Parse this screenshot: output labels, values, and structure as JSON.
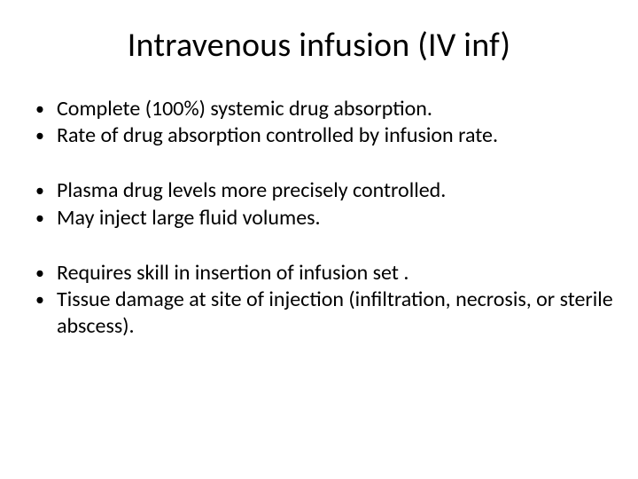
{
  "slide": {
    "title": "Intravenous infusion (IV inf)",
    "title_fontsize": 38,
    "body_fontsize": 24,
    "text_color": "#000000",
    "background_color": "#ffffff",
    "bullet_char": "•",
    "groups": [
      {
        "items": [
          "Complete (100%) systemic drug absorption.",
          "Rate of drug absorption controlled by infusion rate."
        ]
      },
      {
        "items": [
          "Plasma drug levels more precisely controlled.",
          "May inject large fluid volumes."
        ]
      },
      {
        "items": [
          "Requires skill in insertion of infusion set .",
          "Tissue damage at site of injection (infiltration, necrosis, or sterile abscess)."
        ]
      }
    ]
  }
}
